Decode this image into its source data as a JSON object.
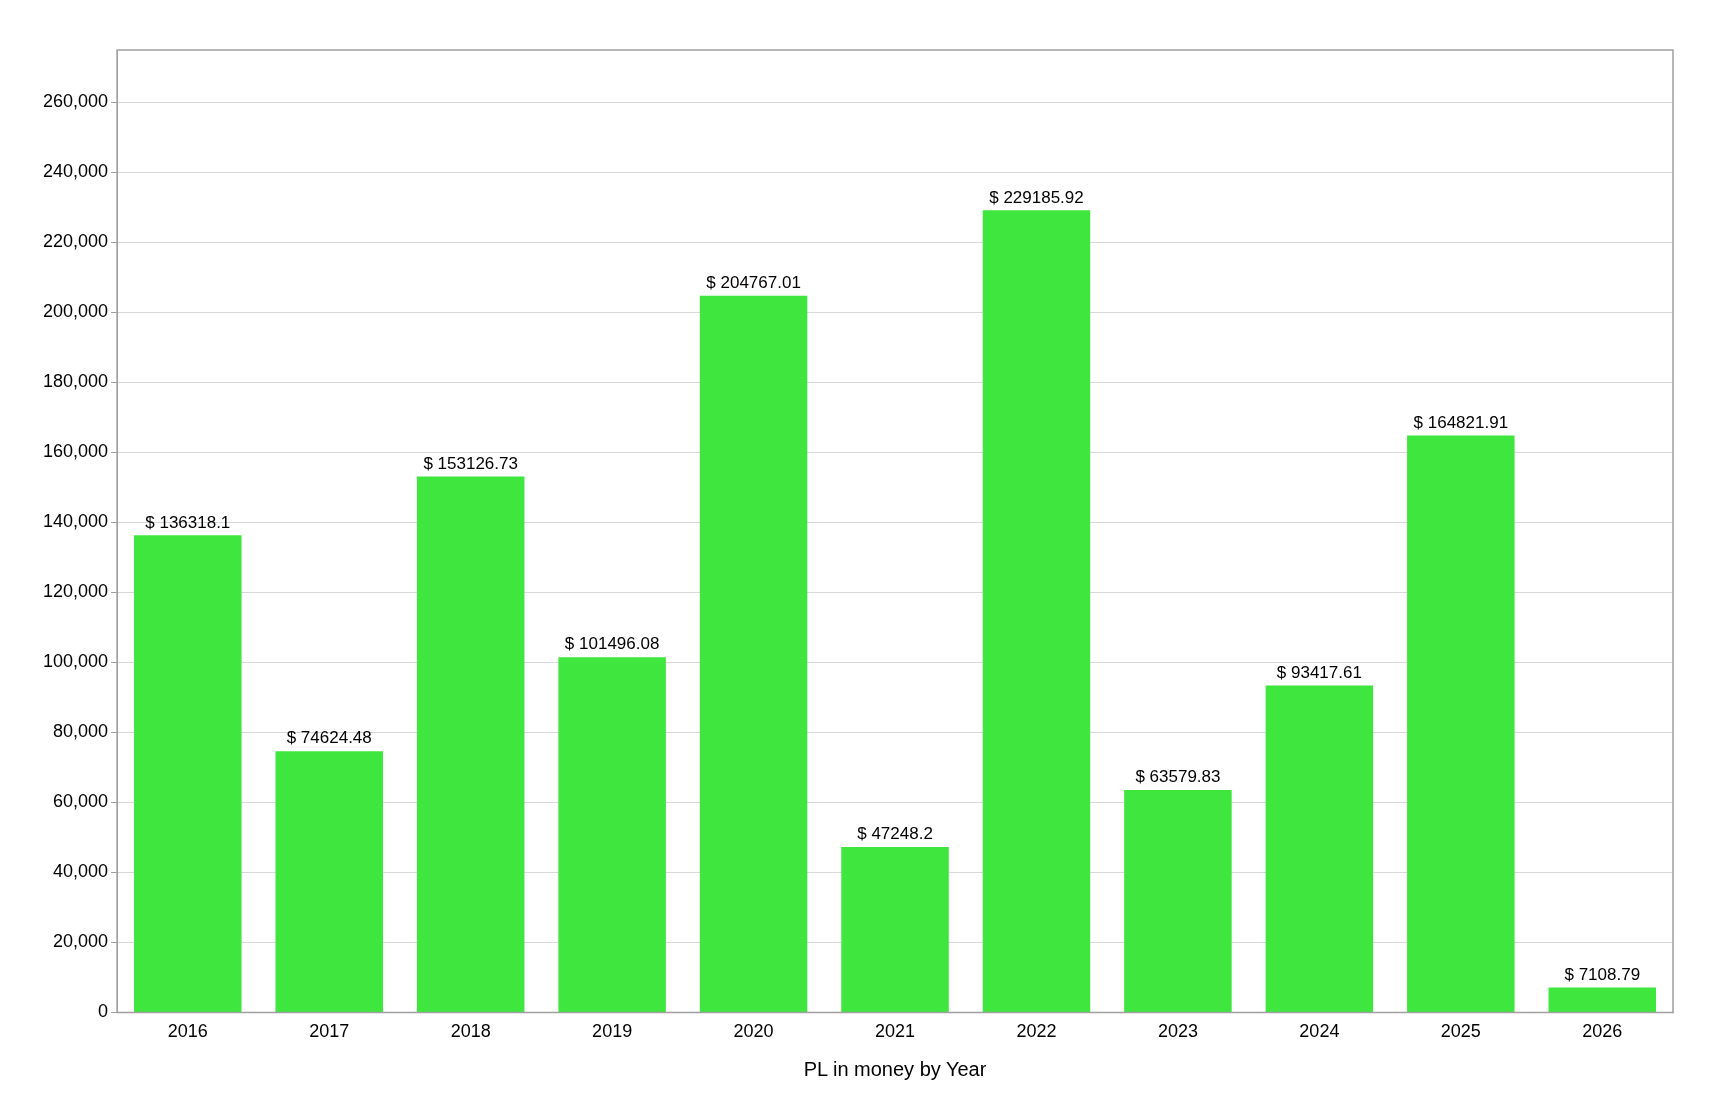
{
  "chart_data": {
    "type": "bar",
    "xlabel": "PL in money by Year",
    "categories": [
      "2016",
      "2017",
      "2018",
      "2019",
      "2020",
      "2021",
      "2022",
      "2023",
      "2024",
      "2025",
      "2026"
    ],
    "values": [
      136318.1,
      74624.48,
      153126.73,
      101496.08,
      204767.01,
      47248.2,
      229185.92,
      63579.83,
      93417.61,
      164821.91,
      7108.79
    ],
    "value_labels": [
      "$ 136318.1",
      "$ 74624.48",
      "$ 153126.73",
      "$ 101496.08",
      "$ 204767.01",
      "$ 47248.2",
      "$ 229185.92",
      "$ 63579.83",
      "$ 93417.61",
      "$ 164821.91",
      "$ 7108.79"
    ],
    "color": "#3ee63e",
    "ylim": [
      0,
      275000
    ],
    "yticks": [
      {
        "value": 0,
        "label": "0"
      },
      {
        "value": 20000,
        "label": "20,000"
      },
      {
        "value": 40000,
        "label": "40,000"
      },
      {
        "value": 60000,
        "label": "60,000"
      },
      {
        "value": 80000,
        "label": "80,000"
      },
      {
        "value": 100000,
        "label": "100,000"
      },
      {
        "value": 120000,
        "label": "120,000"
      },
      {
        "value": 140000,
        "label": "140,000"
      },
      {
        "value": 160000,
        "label": "160,000"
      },
      {
        "value": 180000,
        "label": "180,000"
      },
      {
        "value": 200000,
        "label": "200,000"
      },
      {
        "value": 220000,
        "label": "220,000"
      },
      {
        "value": 240000,
        "label": "240,000"
      },
      {
        "value": 260000,
        "label": "260,000"
      }
    ],
    "grid": "y",
    "legend": false
  }
}
